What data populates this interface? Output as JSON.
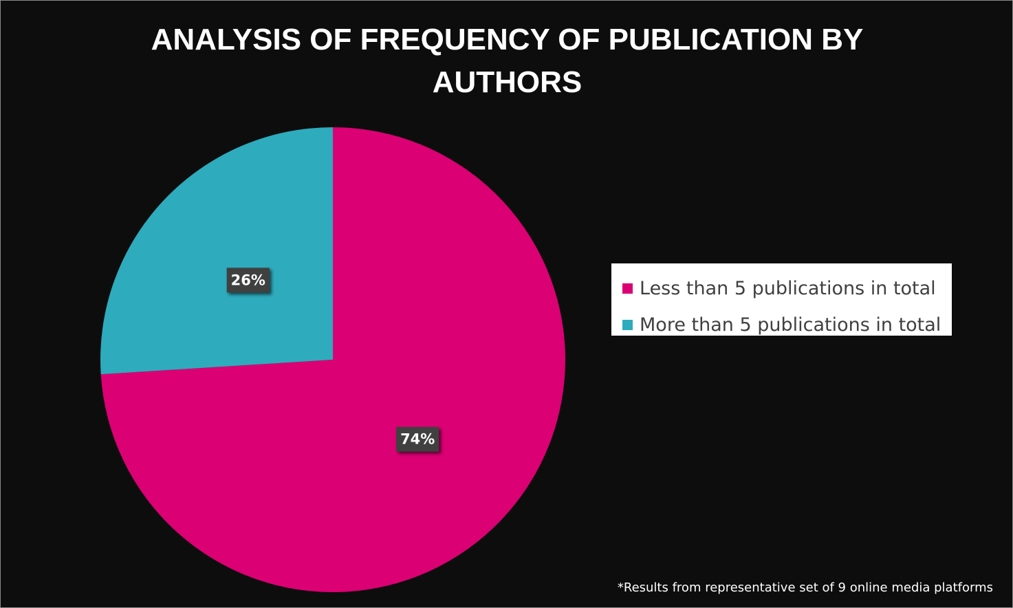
{
  "chart_data": {
    "type": "pie",
    "title": "ANALYSIS OF FREQUENCY OF PUBLICATION BY AUTHORS",
    "categories": [
      "Less than 5 publications in total",
      "More than 5 publications in total"
    ],
    "values": [
      74,
      26
    ],
    "value_labels": [
      "74%",
      "26%"
    ],
    "colors": [
      "#db0073",
      "#2eabbd"
    ],
    "note": "*Results from representative set of 9 online media platforms"
  }
}
